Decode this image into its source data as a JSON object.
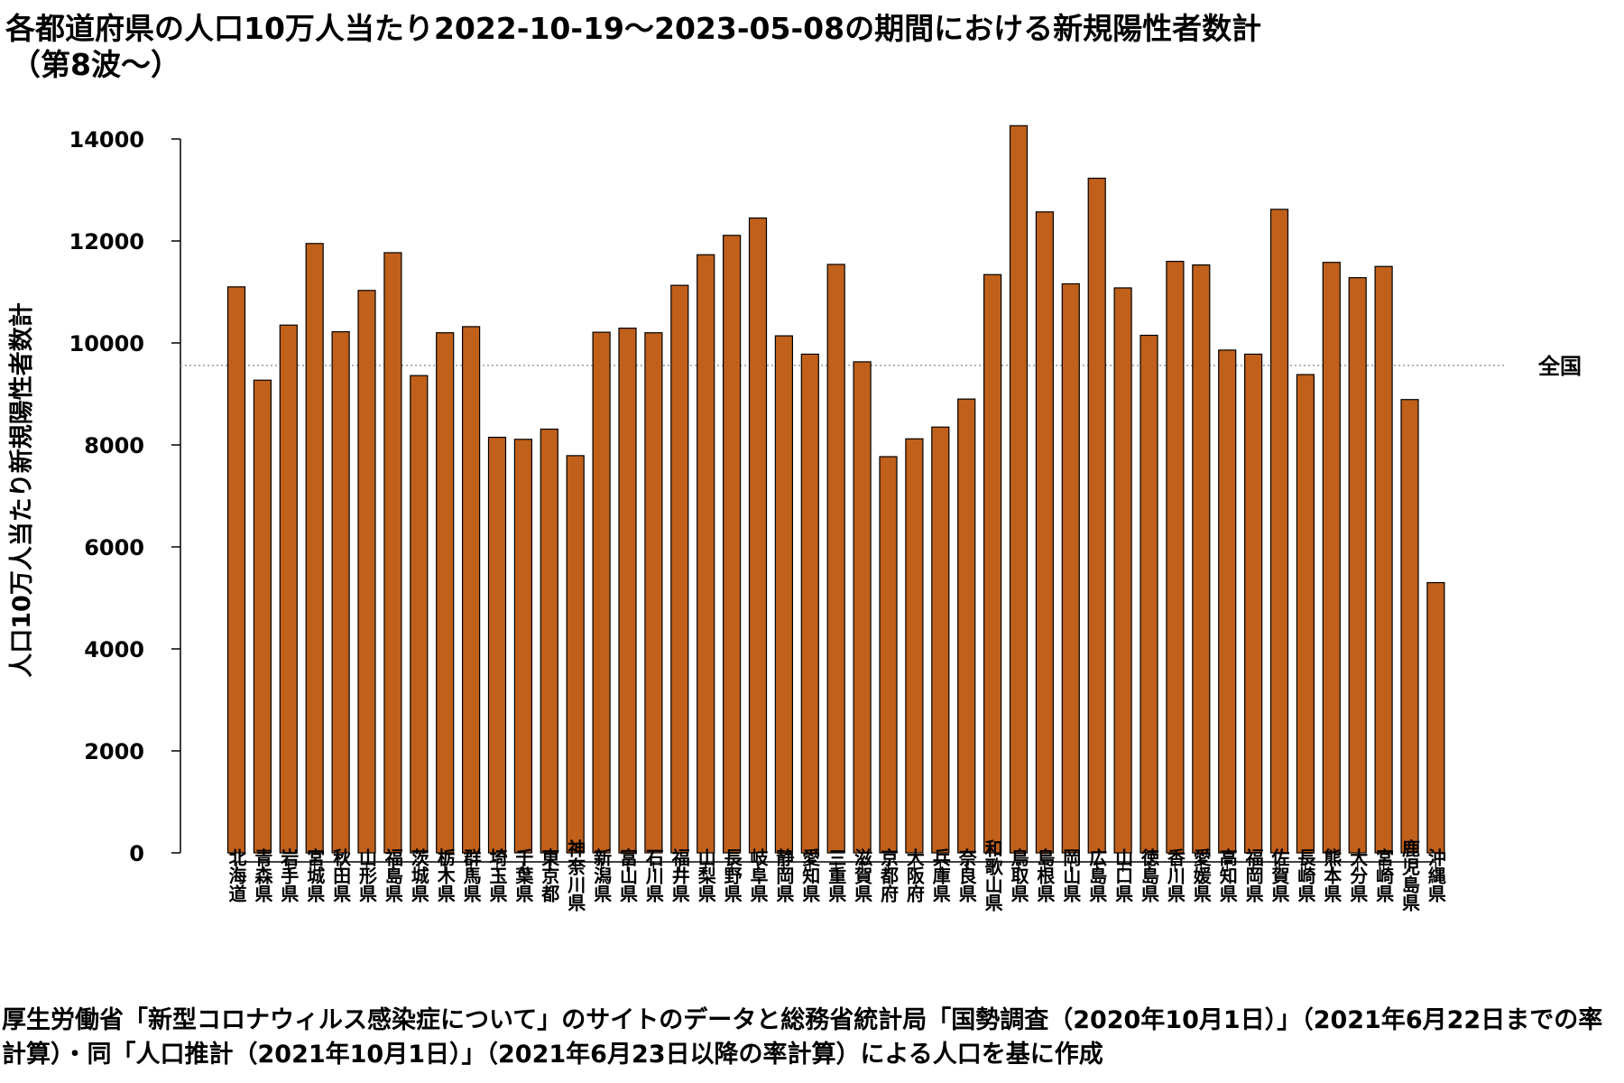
{
  "page": {
    "title_line1": "各都道府県の人口10万人当たり2022-10-19〜2023-05-08の期間における新規陽性者数計",
    "title_line2": "（第8波〜）",
    "footnote": "厚生労働省「新型コロナウィルス感染症について」のサイトのデータと総務省統計局「国勢調査（2020年10月1日）」（2021年6月22日までの率計算）・同「人口推計（2021年10月1日）」（2021年6月23日以降の率計算）による人口を基に作成"
  },
  "chart_data": {
    "type": "bar",
    "ylabel": "人口10万人当たり新規陽性者数計",
    "ylim": [
      0,
      14000
    ],
    "yticks": [
      "0",
      "2000",
      "4000",
      "6000",
      "8000",
      "10000",
      "12000",
      "14000"
    ],
    "bar_color": "#C0601A",
    "reference_line": {
      "label": "全国",
      "value": 9560,
      "style": "dotted",
      "color": "#999999"
    },
    "categories": [
      "北海道",
      "青森県",
      "岩手県",
      "宮城県",
      "秋田県",
      "山形県",
      "福島県",
      "茨城県",
      "栃木県",
      "群馬県",
      "埼玉県",
      "千葉県",
      "東京都",
      "神奈川県",
      "新潟県",
      "富山県",
      "石川県",
      "福井県",
      "山梨県",
      "長野県",
      "岐阜県",
      "静岡県",
      "愛知県",
      "三重県",
      "滋賀県",
      "京都府",
      "大阪府",
      "兵庫県",
      "奈良県",
      "和歌山県",
      "鳥取県",
      "島根県",
      "岡山県",
      "広島県",
      "山口県",
      "徳島県",
      "香川県",
      "愛媛県",
      "高知県",
      "福岡県",
      "佐賀県",
      "長崎県",
      "熊本県",
      "大分県",
      "宮崎県",
      "鹿児島県",
      "沖縄県"
    ],
    "values": [
      11100,
      9270,
      10350,
      11950,
      10220,
      11030,
      11770,
      9360,
      10200,
      10320,
      8150,
      8110,
      8310,
      7790,
      10210,
      10290,
      10200,
      11130,
      11730,
      12110,
      12450,
      10140,
      9780,
      11540,
      9630,
      7770,
      8120,
      8350,
      8900,
      11340,
      14260,
      12570,
      11160,
      13230,
      11080,
      10150,
      11600,
      11530,
      9860,
      9780,
      12620,
      9380,
      11580,
      11280,
      11500,
      8890,
      5300
    ]
  }
}
